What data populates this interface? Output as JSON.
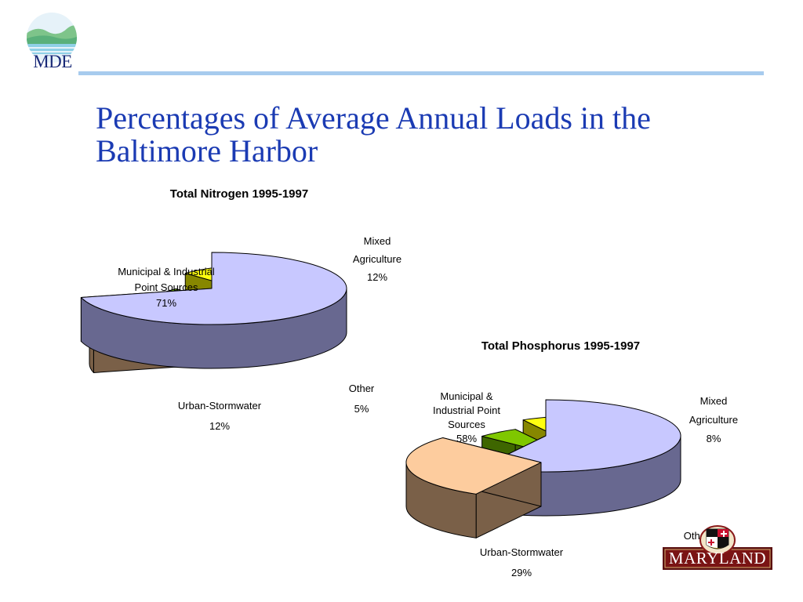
{
  "header": {
    "logo_text": "MDE"
  },
  "slide": {
    "title_line1": "Percentages of Average Annual Loads in the",
    "title_line2": "Baltimore Harbor"
  },
  "colors": {
    "title": "#1b3bb3",
    "rule": "#a7cbee",
    "municipal_top": "#c8c8ff",
    "municipal_side": "#686890",
    "urban_top": "#fdcc9e",
    "urban_side": "#7a6048",
    "other_top": "#7fc700",
    "other_side": "#3e6600",
    "agri_top": "#ffff10",
    "agri_side": "#878700"
  },
  "footer": {
    "state_logo_text": "MARYLAND"
  },
  "chart_data": [
    {
      "type": "pie",
      "title": "Total Nitrogen 1995-1997",
      "slices": [
        {
          "category": "Municipal & Industrial Point Sources",
          "value": 71,
          "label_lines": [
            "Municipal & Industrial",
            "Point Sources"
          ],
          "value_text": "71%"
        },
        {
          "category": "Urban-Stormwater",
          "value": 12,
          "label_lines": [
            "Urban-Stormwater"
          ],
          "value_text": "12%"
        },
        {
          "category": "Other",
          "value": 5,
          "label_lines": [
            "Other"
          ],
          "value_text": "5%"
        },
        {
          "category": "Mixed Agriculture",
          "value": 12,
          "label_lines": [
            "Mixed",
            "Agriculture"
          ],
          "value_text": "12%"
        }
      ]
    },
    {
      "type": "pie",
      "title": "Total Phosphorus 1995-1997",
      "slices": [
        {
          "category": "Municipal & Industrial Point Sources",
          "value": 58,
          "label_lines": [
            "Municipal &",
            "Industrial Point",
            "Sources"
          ],
          "value_text": "58%"
        },
        {
          "category": "Urban-Stormwater",
          "value": 29,
          "label_lines": [
            "Urban-Stormwater"
          ],
          "value_text": "29%"
        },
        {
          "category": "Other",
          "value": 5,
          "label_lines": [
            "Other"
          ],
          "value_text": ""
        },
        {
          "category": "Mixed Agriculture",
          "value": 8,
          "label_lines": [
            "Mixed",
            "Agriculture"
          ],
          "value_text": "8%"
        }
      ]
    }
  ]
}
